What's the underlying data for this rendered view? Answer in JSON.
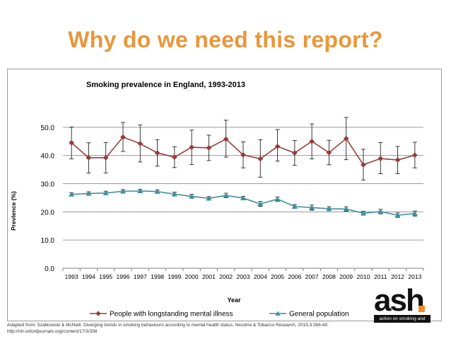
{
  "slide": {
    "title": "Why do we need this report?",
    "source_line1": "Adapted from: Szatkowski & McNeill. Diverging trends in smoking behaviours according to mental health status. Nicotine & Tobacco Research, 2015;3:356-60.",
    "source_line2": "http://ntr.oxfordjournals.org/content/17/3/356"
  },
  "logo": {
    "word": "ash",
    "tagline": "action on smoking and health",
    "accent_color": "#f28c28"
  },
  "chart_data": {
    "type": "line",
    "title": "Smoking prevalence in England, 1993-2013",
    "xlabel": "Year",
    "ylabel": "Prevlence (%)",
    "ylim": [
      0,
      60
    ],
    "yticks": [
      0,
      10,
      20,
      30,
      40,
      50
    ],
    "ytick_labels": [
      "0.0",
      "10.0",
      "20.0",
      "30.0",
      "40.0",
      "50.0"
    ],
    "grid": true,
    "legend_position": "bottom",
    "categories": [
      "1993",
      "1994",
      "1995",
      "1996",
      "1997",
      "1998",
      "1999",
      "2000",
      "2001",
      "2002",
      "2003",
      "2004",
      "2005",
      "2006",
      "2007",
      "2008",
      "2009",
      "2010",
      "2011",
      "2012",
      "2013"
    ],
    "series": [
      {
        "name": "People with longstanding mental illness",
        "color": "#963c3c",
        "marker": "diamond",
        "values": [
          44.5,
          39.2,
          39.2,
          46.5,
          44.2,
          40.9,
          39.4,
          42.9,
          42.7,
          45.8,
          40.2,
          38.8,
          43.2,
          40.9,
          45.0,
          41.0,
          46.0,
          36.7,
          38.9,
          38.4,
          40.1
        ],
        "err_low": [
          38.8,
          33.8,
          33.8,
          41.4,
          37.7,
          36.2,
          35.7,
          36.8,
          38.2,
          39.4,
          35.6,
          32.3,
          38.0,
          36.5,
          38.8,
          36.7,
          38.5,
          31.3,
          33.5,
          33.5,
          35.6
        ],
        "err_high": [
          50.1,
          44.5,
          44.6,
          51.7,
          50.8,
          45.6,
          43.1,
          49.0,
          47.2,
          52.5,
          44.8,
          45.6,
          49.2,
          45.3,
          51.2,
          45.4,
          53.5,
          42.2,
          44.6,
          43.2,
          44.7
        ]
      },
      {
        "name": "General population",
        "color": "#3f8f9d",
        "marker": "triangle",
        "values": [
          26.2,
          26.5,
          26.7,
          27.3,
          27.4,
          27.2,
          26.3,
          25.5,
          24.8,
          25.8,
          24.9,
          22.8,
          24.5,
          21.9,
          21.5,
          21.1,
          21.0,
          19.5,
          20.1,
          18.8,
          19.4
        ],
        "err_low": [
          25.6,
          25.9,
          26.1,
          26.7,
          26.8,
          26.6,
          25.6,
          24.8,
          24.2,
          25.0,
          24.3,
          21.9,
          23.7,
          21.2,
          20.6,
          20.4,
          20.2,
          18.8,
          19.3,
          18.0,
          18.5
        ],
        "err_high": [
          26.8,
          27.1,
          27.3,
          27.9,
          28.0,
          27.8,
          27.0,
          26.2,
          25.4,
          26.6,
          25.5,
          23.7,
          25.3,
          22.6,
          22.4,
          21.8,
          21.8,
          20.2,
          20.9,
          19.6,
          20.3
        ]
      }
    ]
  }
}
